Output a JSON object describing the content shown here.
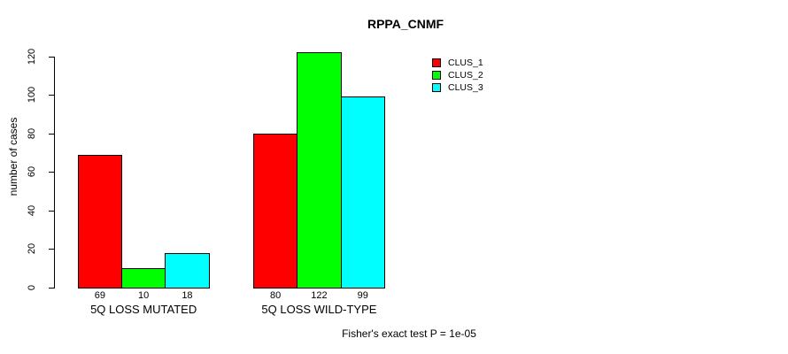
{
  "chart_data": {
    "type": "bar",
    "title": "RPPA_CNMF",
    "ylabel": "number of cases",
    "xlabel": "",
    "categories": [
      "5Q LOSS MUTATED",
      "5Q LOSS WILD-TYPE"
    ],
    "series": [
      {
        "name": "CLUS_1",
        "color": "#FF0000",
        "values": [
          69,
          80
        ]
      },
      {
        "name": "CLUS_2",
        "color": "#00FF00",
        "values": [
          10,
          122
        ]
      },
      {
        "name": "CLUS_3",
        "color": "#00FFFF",
        "values": [
          18,
          99
        ]
      }
    ],
    "ylim": [
      0,
      120
    ],
    "yticks": [
      0,
      20,
      40,
      60,
      80,
      100,
      120
    ],
    "show_bar_values": true,
    "grid": false,
    "legend_position": "top-right-of-plot",
    "annotation": "Fisher's exact test P = 1e-05",
    "axis_color": "#000000",
    "bar_border_color": "#000000"
  }
}
